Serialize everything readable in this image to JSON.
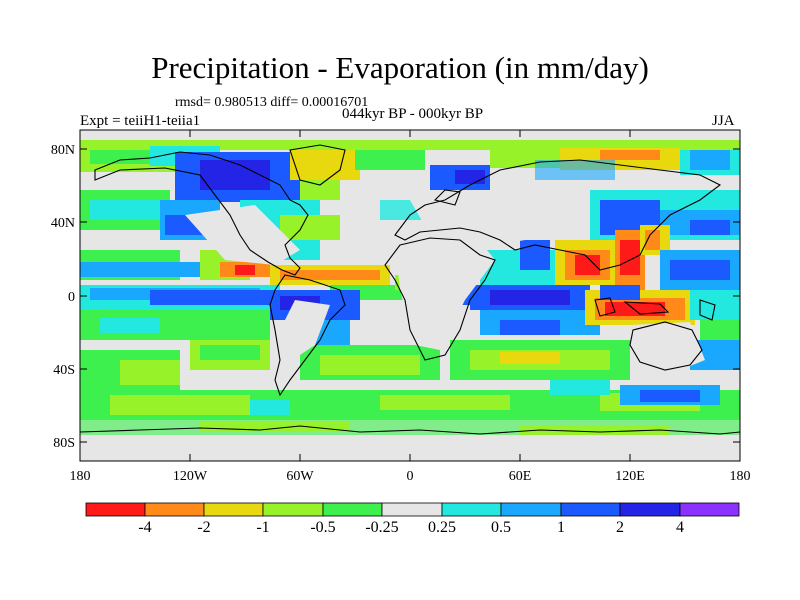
{
  "header": {
    "title": "Precipitation - Evaporation (in mm/day)",
    "stats": "rmsd= 0.980513 diff= 0.00016701",
    "subtitle": "044kyr BP - 000kyr BP",
    "experiment": "Expt = teiiH1-teiia1",
    "season": "JJA"
  },
  "axes": {
    "lat_ticks": [
      "80N",
      "40N",
      "0",
      "40S",
      "80S"
    ],
    "lon_ticks": [
      "180",
      "120W",
      "60W",
      "0",
      "60E",
      "120E",
      "180"
    ]
  },
  "colorbar": {
    "labels": [
      "-4",
      "-2",
      "-1",
      "-0.5",
      "-0.25",
      "0.25",
      "0.5",
      "1",
      "2",
      "4"
    ],
    "colors": [
      "#ff1a1a",
      "#ff8a1a",
      "#e8d80e",
      "#97f22a",
      "#3ef04d",
      "#e6e6e6",
      "#22e8e0",
      "#1aa8ff",
      "#1a5aff",
      "#2424e6",
      "#8a33ff"
    ]
  },
  "colors": {
    "background": "#e6e6e6",
    "coastline": "#000000"
  }
}
